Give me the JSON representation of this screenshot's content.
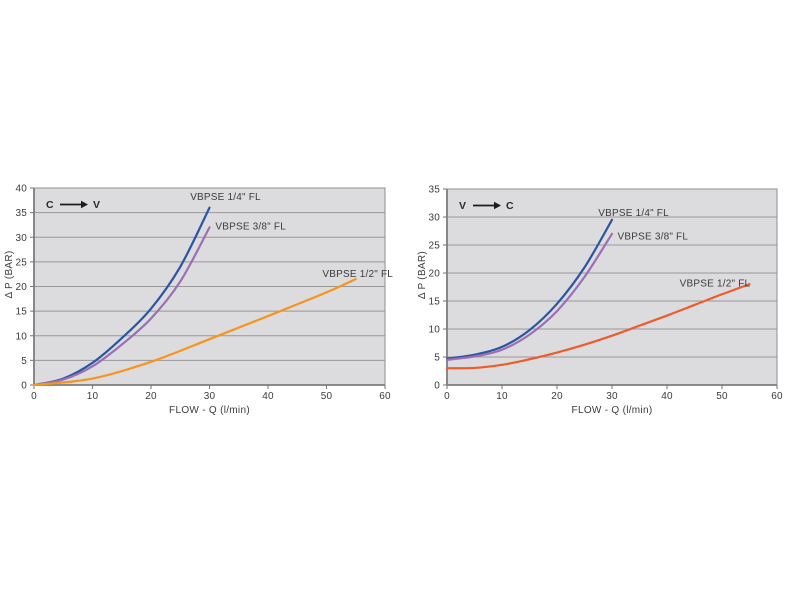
{
  "page": {
    "background": "#ffffff"
  },
  "palette": {
    "plot_bg": "#dcdcde",
    "grid_color": "#97979b",
    "axis_color": "#7e7e82",
    "text_color": "#3b3b3d",
    "arrow_color": "#1c1c1e",
    "blue": "#2a55a3",
    "purple": "#9c6eb4",
    "orange": "#f7941d",
    "vermilion": "#ef5b2b"
  },
  "chart_data": [
    {
      "id": "c-to-v",
      "type": "line",
      "direction_label": {
        "from": "C",
        "to": "V"
      },
      "xlabel": "FLOW - Q (l/min)",
      "ylabel": "Δ P (BAR)",
      "xlim": [
        0,
        60
      ],
      "ylim": [
        0,
        40
      ],
      "xticks": [
        0,
        10,
        20,
        30,
        40,
        50,
        60
      ],
      "yticks": [
        0,
        5,
        10,
        15,
        20,
        25,
        30,
        35,
        40
      ],
      "grid": "horizontal",
      "legend": "inline-labels",
      "series": [
        {
          "name": "VBPSE 1/4\" FL",
          "color": "#2a55a3",
          "points": [
            [
              0,
              0
            ],
            [
              5,
              1.3
            ],
            [
              10,
              4.5
            ],
            [
              15,
              9.5
            ],
            [
              20,
              15.5
            ],
            [
              25,
              24
            ],
            [
              30,
              36
            ]
          ],
          "label_pos": [
            26.7,
            37.6
          ]
        },
        {
          "name": "VBPSE 3/8\" FL",
          "color": "#9c6eb4",
          "points": [
            [
              0,
              0
            ],
            [
              5,
              1.1
            ],
            [
              10,
              3.8
            ],
            [
              15,
              8.2
            ],
            [
              20,
              13.5
            ],
            [
              25,
              21
            ],
            [
              30,
              32
            ]
          ],
          "label_pos": [
            31.0,
            31.6
          ]
        },
        {
          "name": "VBPSE 1/2\" FL",
          "color": "#f7941d",
          "points": [
            [
              0,
              0
            ],
            [
              10,
              1.3
            ],
            [
              20,
              4.7
            ],
            [
              30,
              9.3
            ],
            [
              40,
              14
            ],
            [
              50,
              18.8
            ],
            [
              55,
              21.5
            ]
          ],
          "label_pos": [
            49.3,
            21.9
          ]
        }
      ]
    },
    {
      "id": "v-to-c",
      "type": "line",
      "direction_label": {
        "from": "V",
        "to": "C"
      },
      "xlabel": "FLOW - Q (l/min)",
      "ylabel": "Δ P (BAR)",
      "xlim": [
        0,
        60
      ],
      "ylim": [
        0,
        35
      ],
      "xticks": [
        0,
        10,
        20,
        30,
        40,
        50,
        60
      ],
      "yticks": [
        0,
        5,
        10,
        15,
        20,
        25,
        30,
        35
      ],
      "grid": "horizontal",
      "legend": "inline-labels",
      "series": [
        {
          "name": "VBPSE 1/4\" FL",
          "color": "#2a55a3",
          "points": [
            [
              0,
              4.7
            ],
            [
              5,
              5.4
            ],
            [
              10,
              6.8
            ],
            [
              15,
              9.8
            ],
            [
              20,
              14.5
            ],
            [
              25,
              21
            ],
            [
              30,
              29.5
            ]
          ],
          "label_pos": [
            27.5,
            30.2
          ]
        },
        {
          "name": "VBPSE 3/8\" FL",
          "color": "#9c6eb4",
          "points": [
            [
              0,
              4.5
            ],
            [
              5,
              5.1
            ],
            [
              10,
              6.3
            ],
            [
              15,
              9
            ],
            [
              20,
              13.2
            ],
            [
              25,
              19.3
            ],
            [
              30,
              27
            ]
          ],
          "label_pos": [
            31.0,
            26.0
          ]
        },
        {
          "name": "VBPSE 1/2\" FL",
          "color": "#ef5b2b",
          "points": [
            [
              0,
              3
            ],
            [
              5,
              3.05
            ],
            [
              10,
              3.6
            ],
            [
              15,
              4.6
            ],
            [
              20,
              5.8
            ],
            [
              25,
              7.2
            ],
            [
              30,
              8.8
            ],
            [
              35,
              10.6
            ],
            [
              40,
              12.4
            ],
            [
              45,
              14.3
            ],
            [
              50,
              16.2
            ],
            [
              55,
              18
            ]
          ],
          "label_pos": [
            42.3,
            17.6
          ]
        }
      ]
    }
  ]
}
